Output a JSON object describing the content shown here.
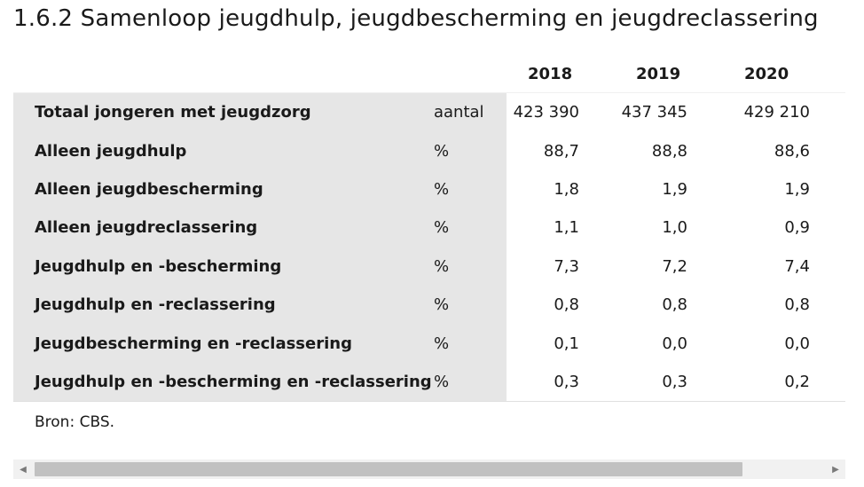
{
  "title": "1.6.2 Samenloop jeugdhulp, jeugdbescherming en jeugdreclassering",
  "table": {
    "years": [
      "2018",
      "2019",
      "2020"
    ],
    "rows": [
      {
        "label": "Totaal jongeren met jeugdzorg",
        "unit": "aantal",
        "values": [
          "423 390",
          "437 345",
          "429 210"
        ]
      },
      {
        "label": "Alleen jeugdhulp",
        "unit": "%",
        "values": [
          "88,7",
          "88,8",
          "88,6"
        ]
      },
      {
        "label": "Alleen jeugdbescherming",
        "unit": "%",
        "values": [
          "1,8",
          "1,9",
          "1,9"
        ]
      },
      {
        "label": "Alleen jeugdreclassering",
        "unit": "%",
        "values": [
          "1,1",
          "1,0",
          "0,9"
        ]
      },
      {
        "label": "Jeugdhulp en -bescherming",
        "unit": "%",
        "values": [
          "7,3",
          "7,2",
          "7,4"
        ]
      },
      {
        "label": "Jeugdhulp en -reclassering",
        "unit": "%",
        "values": [
          "0,8",
          "0,8",
          "0,8"
        ]
      },
      {
        "label": "Jeugdbescherming en -reclassering",
        "unit": "%",
        "values": [
          "0,1",
          "0,0",
          "0,0"
        ]
      },
      {
        "label": "Jeugdhulp en -bescherming en -reclassering",
        "unit": "%",
        "values": [
          "0,3",
          "0,3",
          "0,2"
        ]
      }
    ]
  },
  "source": "Bron: CBS.",
  "scrollbar": {
    "left_icon": "scroll-left-arrow-icon",
    "right_icon": "scroll-right-arrow-icon"
  }
}
